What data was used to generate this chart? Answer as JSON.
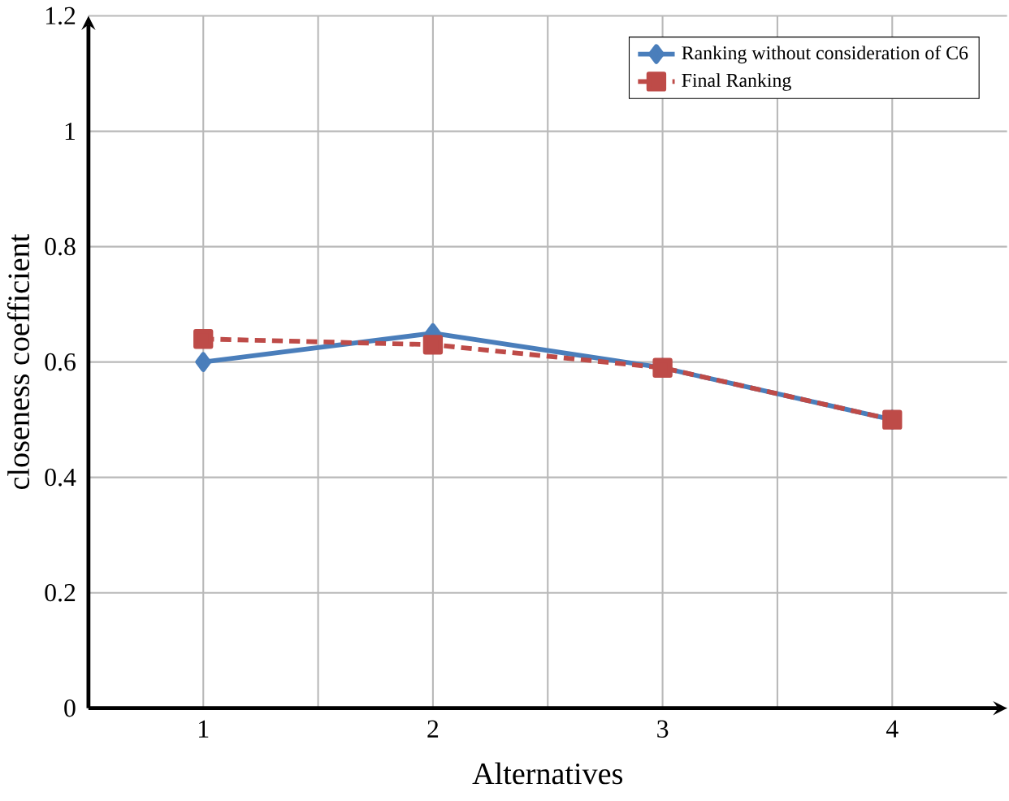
{
  "chart_data": {
    "type": "line",
    "xlabel": "Alternatives",
    "ylabel": "closeness coefficient",
    "x": [
      1,
      2,
      3,
      4
    ],
    "series": [
      {
        "name": "Ranking without consideration of C6",
        "color": "#4a7ebb",
        "values": [
          0.6,
          0.65,
          0.59,
          0.5
        ],
        "marker": "diamond",
        "line_style": "solid"
      },
      {
        "name": "Final Ranking",
        "color": "#be4b48",
        "values": [
          0.64,
          0.63,
          0.59,
          0.5
        ],
        "marker": "square",
        "line_style": "dashed"
      }
    ],
    "xlim": [
      0.5,
      4.5
    ],
    "xticks": [
      1,
      {
        "value": 1.5,
        "label": null
      },
      2,
      {
        "value": 2.5,
        "label": null
      },
      3,
      {
        "value": 3.5,
        "label": null
      },
      4
    ],
    "ylim": [
      0,
      1.2
    ],
    "yticks": [
      0,
      0.2,
      0.4,
      0.6,
      0.8,
      1,
      1.2
    ],
    "grid": true,
    "legend": "top right"
  }
}
